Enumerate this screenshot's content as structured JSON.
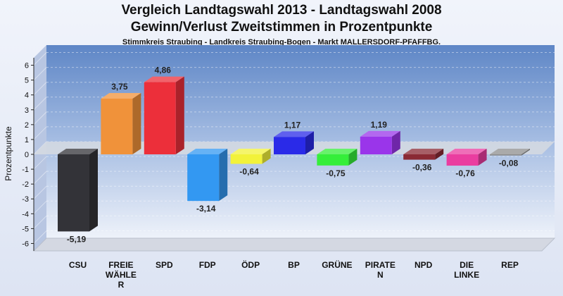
{
  "chart_data": {
    "type": "bar",
    "title": "Vergleich Landtagswahl 2013 - Landtagswahl 2008",
    "subtitle": "Gewinn/Verlust Zweitstimmen in Prozentpunkte",
    "subtitle2": "Stimmkreis Straubing - Landkreis Straubing-Bogen - Markt MALLERSDORF-PFAFFBG.",
    "ylabel": "Prozentpunkte",
    "xlabel": "",
    "ylim": [
      -6.5,
      6.5
    ],
    "yticks": [
      "6",
      "5",
      "4",
      "3",
      "2",
      "1",
      "0",
      "-1",
      "-2",
      "-3",
      "-4",
      "-5",
      "-6"
    ],
    "grid": true,
    "categories": [
      "CSU",
      "FREIE WÄHLER",
      "SPD",
      "FDP",
      "ÖDP",
      "BP",
      "GRÜNE",
      "PIRATEN",
      "NPD",
      "DIE LINKE",
      "REP"
    ],
    "category_labels": [
      [
        "CSU"
      ],
      [
        "FREIE",
        "WÄHLE",
        "R"
      ],
      [
        "SPD"
      ],
      [
        "FDP"
      ],
      [
        "ÖDP"
      ],
      [
        "BP"
      ],
      [
        "GRÜNE"
      ],
      [
        "PIRATE",
        "N"
      ],
      [
        "NPD"
      ],
      [
        "DIE",
        "LINKE"
      ],
      [
        "REP"
      ]
    ],
    "values": [
      -5.19,
      3.75,
      4.86,
      -3.14,
      -0.64,
      1.17,
      -0.75,
      1.19,
      -0.36,
      -0.76,
      -0.08
    ],
    "value_labels": [
      "-5,19",
      "3,75",
      "4,86",
      "-3,14",
      "-0,64",
      "1,17",
      "-0,75",
      "1,19",
      "-0,36",
      "-0,76",
      "-0,08"
    ],
    "colors": [
      "#333338",
      "#f0923a",
      "#ec2f3a",
      "#3398f2",
      "#f2f23a",
      "#2a2ae8",
      "#35ee3a",
      "#9a35ea",
      "#8a2a34",
      "#ea3da0",
      "#8e8e8e"
    ]
  }
}
